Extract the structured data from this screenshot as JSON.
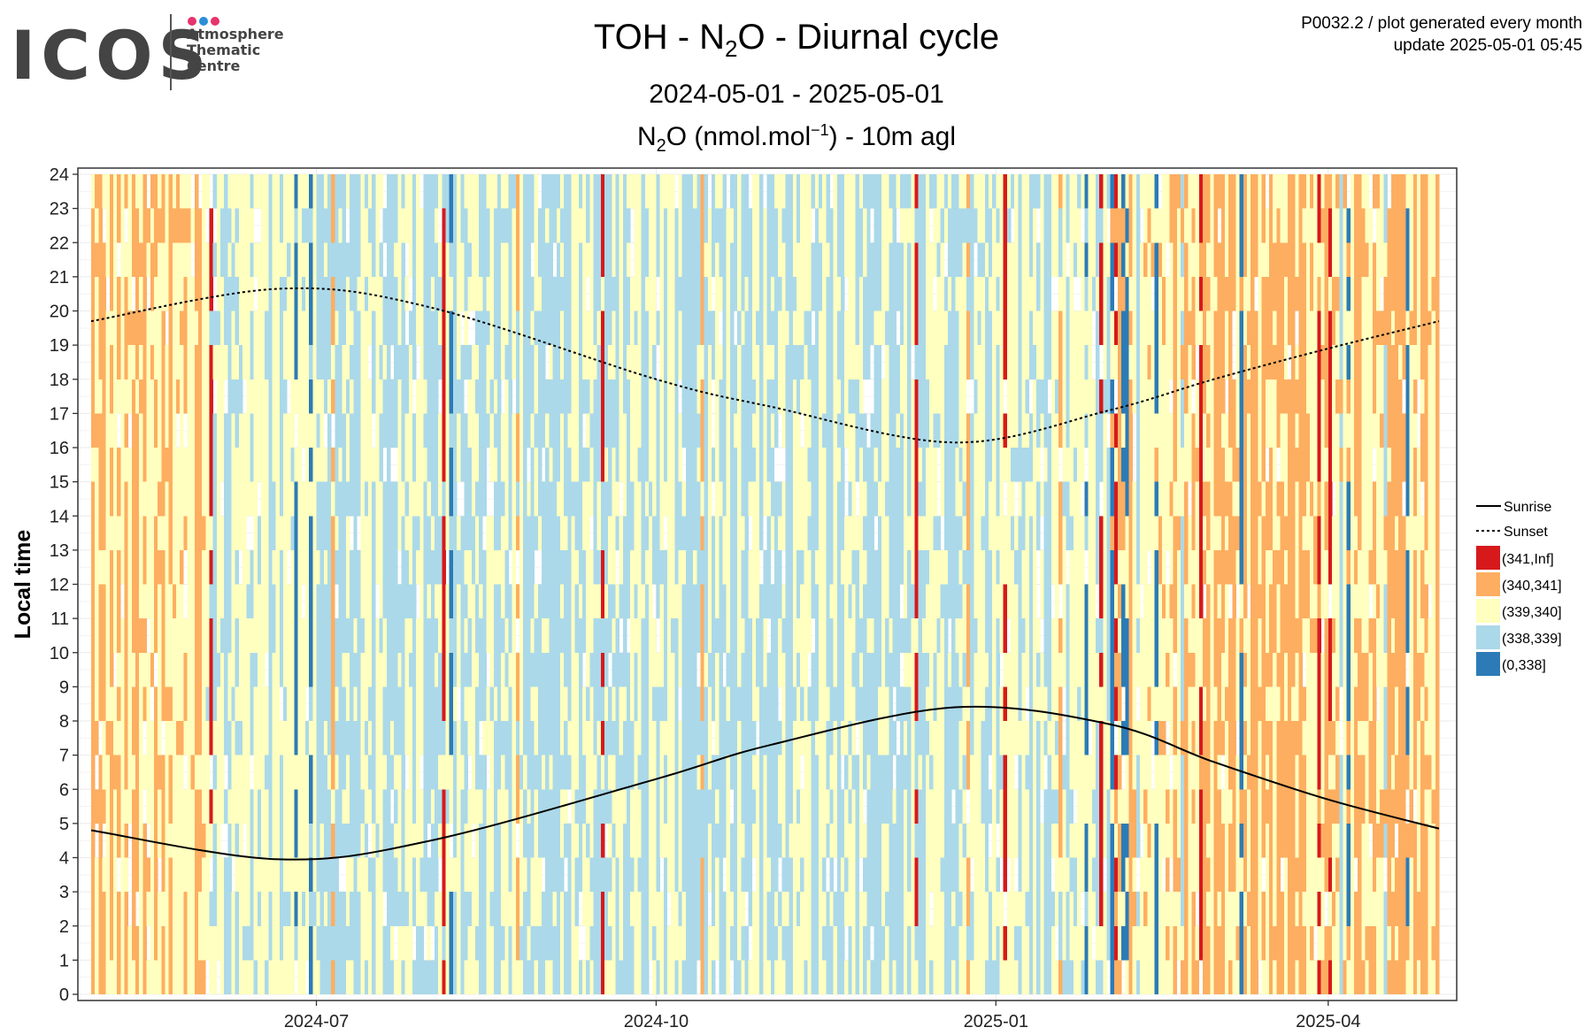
{
  "header": {
    "logo_text": "ICOS",
    "logo_lines": [
      "Atmosphere",
      "Thematic",
      "Centre"
    ],
    "logo_dot_colors": [
      "#e8336d",
      "#2b8ed6",
      "#e8336d"
    ],
    "title_parts": [
      "TOH - N",
      "2",
      "O - Diurnal cycle"
    ],
    "subtitle": "2024-05-01 - 2025-05-01",
    "chart_title_parts": [
      "N",
      "2",
      "O (nmol.mol",
      "−1",
      ") - 10m agl"
    ],
    "info_line1": "P0032.2 / plot generated every month",
    "info_line2": "update  2025-05-01 05:45"
  },
  "chart_data": {
    "type": "heatmap",
    "ylabel": "Local time",
    "xlabel": "",
    "x_range": [
      "2024-05-01",
      "2025-05-01"
    ],
    "y_range": [
      0,
      24
    ],
    "y_ticks": [
      0,
      1,
      2,
      3,
      4,
      5,
      6,
      7,
      8,
      9,
      10,
      11,
      12,
      13,
      14,
      15,
      16,
      17,
      18,
      19,
      20,
      21,
      22,
      23,
      24
    ],
    "x_ticks": [
      {
        "date": "2024-07-01",
        "label": "2024-07"
      },
      {
        "date": "2024-10-01",
        "label": "2024-10"
      },
      {
        "date": "2025-01-01",
        "label": "2025-01"
      },
      {
        "date": "2025-04-01",
        "label": "2025-04"
      }
    ],
    "grid": true,
    "legend_position": "right",
    "bins": [
      {
        "label": "(341,Inf]",
        "color": "#d7191c"
      },
      {
        "label": "(340,341]",
        "color": "#fdae61"
      },
      {
        "label": "(339,340]",
        "color": "#ffffbf"
      },
      {
        "label": "(338,339]",
        "color": "#abd9e9"
      },
      {
        "label": "(0,338]",
        "color": "#2c7bb6"
      }
    ],
    "monthly_dominant_bin": [
      {
        "month": "2024-05",
        "bin": "(339,340]",
        "secondary": "(340,341]"
      },
      {
        "month": "2024-06",
        "bin": "(339,340]",
        "secondary": "(338,339]"
      },
      {
        "month": "2024-07",
        "bin": "(338,339]",
        "secondary": "(339,340]"
      },
      {
        "month": "2024-08",
        "bin": "(338,339]",
        "secondary": "(339,340]"
      },
      {
        "month": "2024-09",
        "bin": "(338,339]",
        "secondary": "(339,340]"
      },
      {
        "month": "2024-10",
        "bin": "(338,339]",
        "secondary": "(339,340]"
      },
      {
        "month": "2024-11",
        "bin": "(338,339]",
        "secondary": "(339,340]"
      },
      {
        "month": "2024-12",
        "bin": "(338,339]",
        "secondary": "(339,340]"
      },
      {
        "month": "2025-01",
        "bin": "(339,340]",
        "secondary": "(338,339]"
      },
      {
        "month": "2025-02",
        "bin": "(339,340]",
        "secondary": "(340,341]"
      },
      {
        "month": "2025-03",
        "bin": "(340,341]",
        "secondary": "(339,340]"
      },
      {
        "month": "2025-04",
        "bin": "(340,341]",
        "secondary": "(339,340]"
      }
    ],
    "series": [
      {
        "name": "Sunrise",
        "style": "solid",
        "x": [
          "2024-05-01",
          "2024-06-21",
          "2024-08-01",
          "2024-10-01",
          "2024-11-01",
          "2024-12-21",
          "2025-02-01",
          "2025-03-01",
          "2025-04-01",
          "2025-05-01"
        ],
        "y": [
          4.8,
          3.95,
          4.5,
          6.3,
          7.3,
          8.4,
          7.9,
          6.8,
          5.7,
          4.85
        ]
      },
      {
        "name": "Sunset",
        "style": "dotted",
        "x": [
          "2024-05-01",
          "2024-06-21",
          "2024-08-01",
          "2024-10-01",
          "2024-11-01",
          "2024-12-21",
          "2025-02-01",
          "2025-03-01",
          "2025-04-01",
          "2025-05-01"
        ],
        "y": [
          19.7,
          20.65,
          20.1,
          18.0,
          17.2,
          16.15,
          17.1,
          18.0,
          18.9,
          19.7
        ]
      }
    ]
  }
}
